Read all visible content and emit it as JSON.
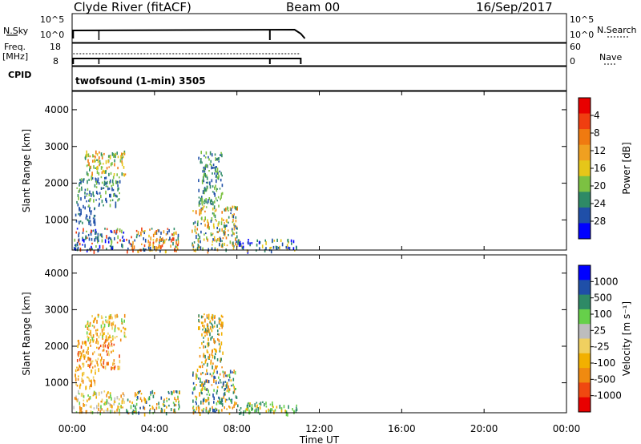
{
  "header": {
    "station": "Clyde River (fitACF)",
    "beam": "Beam 00",
    "date": "16/Sep/2017"
  },
  "strip": {
    "nsky_label": "N.Sky",
    "nsky_ticks": [
      "10^5",
      "10^0"
    ],
    "nsearch_label": "N.Search",
    "nsearch_ticks": [
      "10^5",
      "10^0"
    ],
    "freq_label": "Freq.",
    "freq_unit": "[MHz]",
    "freq_ticks": [
      "18",
      "8"
    ],
    "nave_label": "Nave",
    "nave_ticks": [
      "60",
      "0"
    ],
    "cpid_label": "CPID",
    "cpid_text": "twofsound (1-min) 3505"
  },
  "colors": {
    "power_scale": [
      "#0000ff",
      "#1f4fa8",
      "#2e8a66",
      "#7cc142",
      "#e6c619",
      "#f0a020",
      "#f07a10",
      "#f03e10",
      "#e80000"
    ],
    "velocity_scale": [
      "#e80000",
      "#f04810",
      "#f08a10",
      "#f2b000",
      "#f0d060",
      "#bdbdbd",
      "#66d04a",
      "#2e8a66",
      "#1f4fa8",
      "#0000ff"
    ]
  },
  "chart_data": [
    {
      "type": "heatmap",
      "name": "power",
      "ylabel": "Slant Range [km]",
      "xlabel": "Time UT",
      "x_ticks": [
        "00:00",
        "04:00",
        "08:00",
        "12:00",
        "16:00",
        "20:00",
        "00:00"
      ],
      "y_ticks": [
        "1000",
        "2000",
        "3000",
        "4000"
      ],
      "xlim_hours": [
        0,
        24
      ],
      "ylim_km": [
        180,
        4500
      ],
      "colorbar_label": "Power [dB]",
      "colorbar_ticks": [
        "4",
        "8",
        "12",
        "16",
        "20",
        "24",
        "28"
      ],
      "patches": [
        {
          "t0": 0.05,
          "t1": 2.5,
          "r0": 180,
          "r1": 800,
          "c": [
            1,
            1,
            2,
            0,
            3,
            7
          ]
        },
        {
          "t0": 0.1,
          "t1": 1.1,
          "r0": 900,
          "r1": 1400,
          "c": [
            1,
            2,
            1
          ]
        },
        {
          "t0": 0.2,
          "t1": 2.3,
          "r0": 1400,
          "r1": 2200,
          "c": [
            1,
            2,
            3,
            1
          ]
        },
        {
          "t0": 0.6,
          "t1": 2.6,
          "r0": 2200,
          "r1": 2900,
          "c": [
            3,
            4,
            6,
            2
          ]
        },
        {
          "t0": 2.6,
          "t1": 5.2,
          "r0": 180,
          "r1": 800,
          "c": [
            7,
            6,
            5,
            4,
            2,
            1
          ]
        },
        {
          "t0": 5.8,
          "t1": 8.0,
          "r0": 180,
          "r1": 1400,
          "c": [
            1,
            2,
            3,
            4,
            6,
            5
          ]
        },
        {
          "t0": 6.1,
          "t1": 7.3,
          "r0": 1400,
          "r1": 2900,
          "c": [
            1,
            2,
            3
          ]
        },
        {
          "t0": 8.0,
          "t1": 10.9,
          "r0": 180,
          "r1": 500,
          "c": [
            1,
            2,
            0,
            4
          ]
        }
      ]
    },
    {
      "type": "heatmap",
      "name": "velocity",
      "ylabel": "Slant Range [km]",
      "xlabel": "Time UT",
      "x_ticks": [
        "00:00",
        "04:00",
        "08:00",
        "12:00",
        "16:00",
        "20:00",
        "00:00"
      ],
      "y_ticks": [
        "1000",
        "2000",
        "3000",
        "4000"
      ],
      "xlim_hours": [
        0,
        24
      ],
      "ylim_km": [
        180,
        4500
      ],
      "colorbar_label": "Velocity [m s⁻¹]",
      "colorbar_ticks": [
        "1000",
        "500",
        "100",
        "25",
        "-25",
        "-100",
        "-500",
        "-1000"
      ],
      "patches": [
        {
          "t0": 0.05,
          "t1": 2.5,
          "r0": 180,
          "r1": 800,
          "c": [
            5,
            4,
            3,
            6,
            2
          ]
        },
        {
          "t0": 0.1,
          "t1": 1.1,
          "r0": 900,
          "r1": 1400,
          "c": [
            3,
            2,
            4
          ]
        },
        {
          "t0": 0.2,
          "t1": 2.3,
          "r0": 1400,
          "r1": 2200,
          "c": [
            2,
            3,
            1,
            4
          ]
        },
        {
          "t0": 0.6,
          "t1": 2.6,
          "r0": 2200,
          "r1": 2900,
          "c": [
            3,
            2,
            6,
            4
          ]
        },
        {
          "t0": 2.6,
          "t1": 5.2,
          "r0": 180,
          "r1": 800,
          "c": [
            6,
            7,
            8,
            3,
            2
          ]
        },
        {
          "t0": 5.8,
          "t1": 8.0,
          "r0": 180,
          "r1": 1400,
          "c": [
            7,
            8,
            6,
            3,
            2
          ]
        },
        {
          "t0": 6.1,
          "t1": 7.3,
          "r0": 1400,
          "r1": 2900,
          "c": [
            7,
            3,
            2
          ]
        },
        {
          "t0": 8.0,
          "t1": 10.9,
          "r0": 180,
          "r1": 500,
          "c": [
            6,
            3,
            7
          ]
        }
      ]
    }
  ]
}
